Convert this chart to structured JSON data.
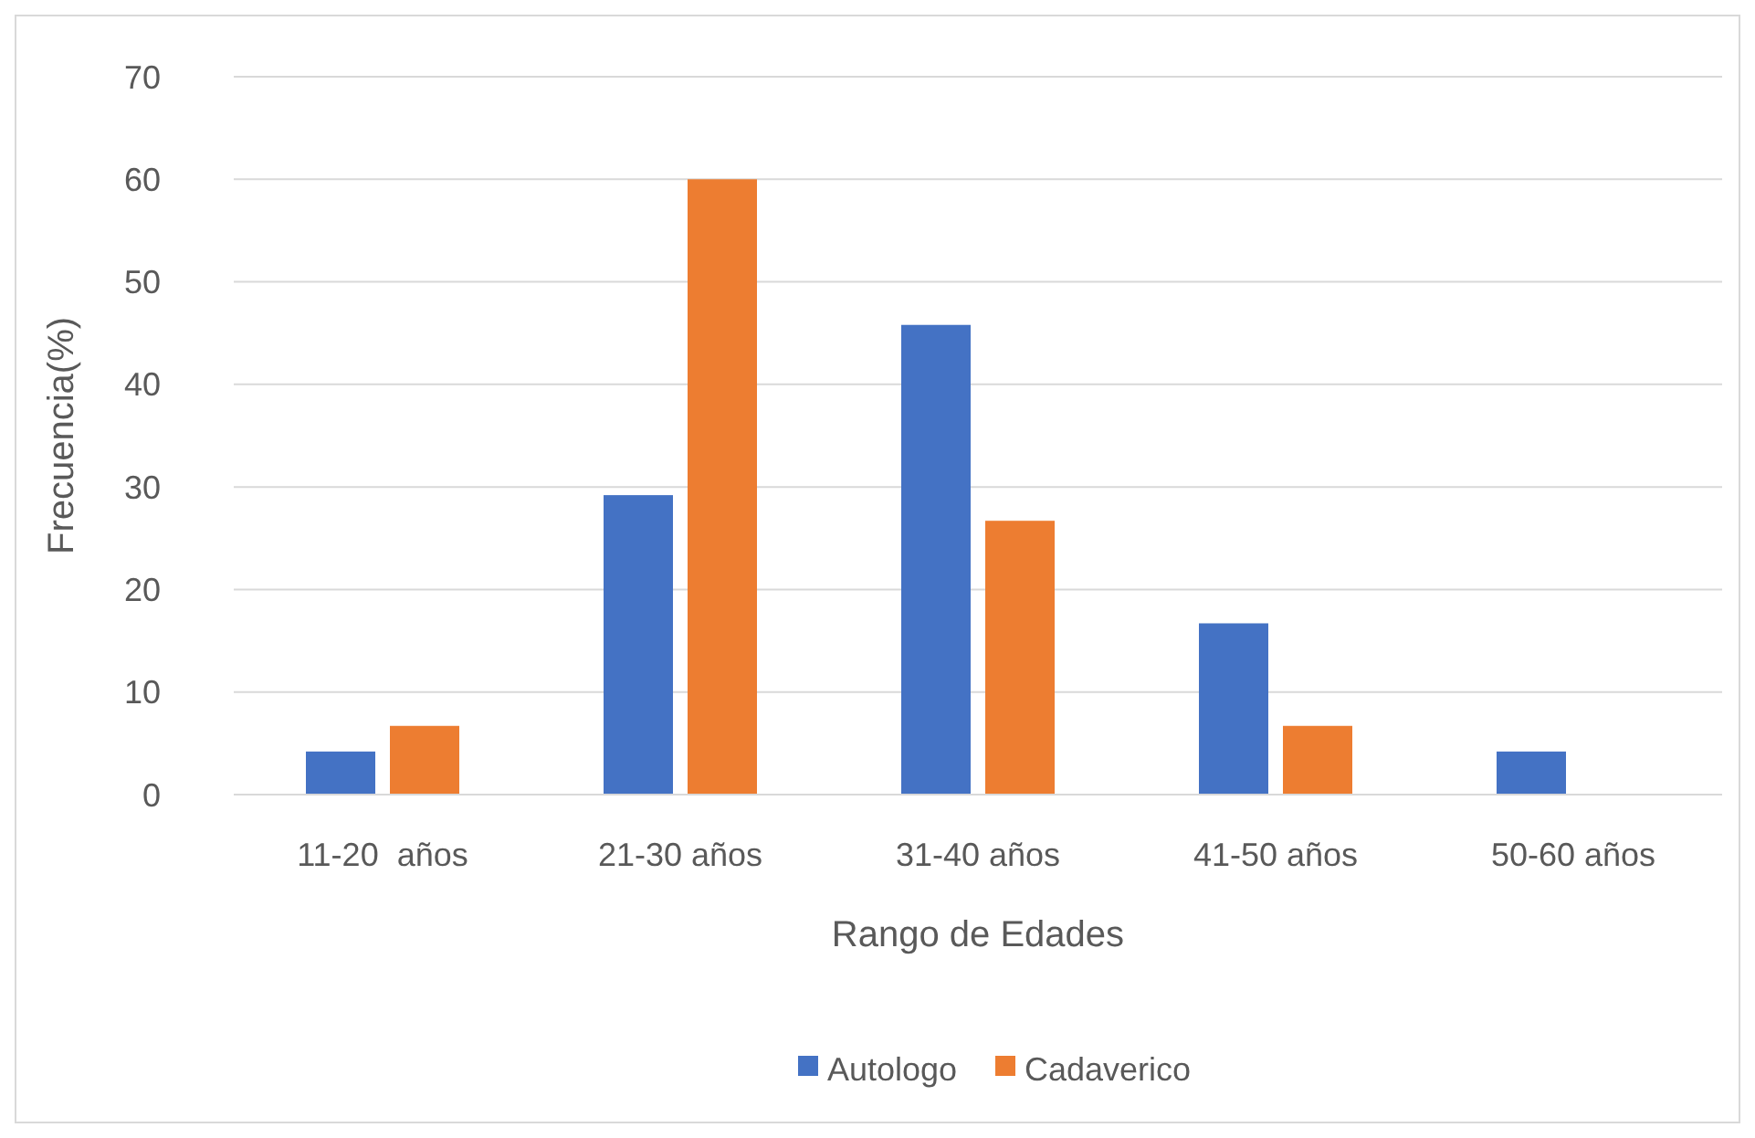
{
  "chart_data": {
    "type": "bar",
    "xlabel": "Rango de Edades",
    "ylabel": "Frecuencia(%)",
    "categories": [
      "11-20  años",
      "21-30 años",
      "31-40 años",
      "41-50 años",
      "50-60 años"
    ],
    "series": [
      {
        "name": "Autologo",
        "color": "#4472c4",
        "values": [
          4.2,
          29.2,
          45.8,
          16.7,
          4.2
        ]
      },
      {
        "name": "Cadaverico",
        "color": "#ed7d31",
        "values": [
          6.7,
          60,
          26.7,
          6.7,
          0
        ]
      }
    ],
    "ylim": [
      0,
      70
    ],
    "yticks": [
      0,
      10,
      20,
      30,
      40,
      50,
      60,
      70
    ],
    "grid": "y",
    "legend": "bottom"
  }
}
